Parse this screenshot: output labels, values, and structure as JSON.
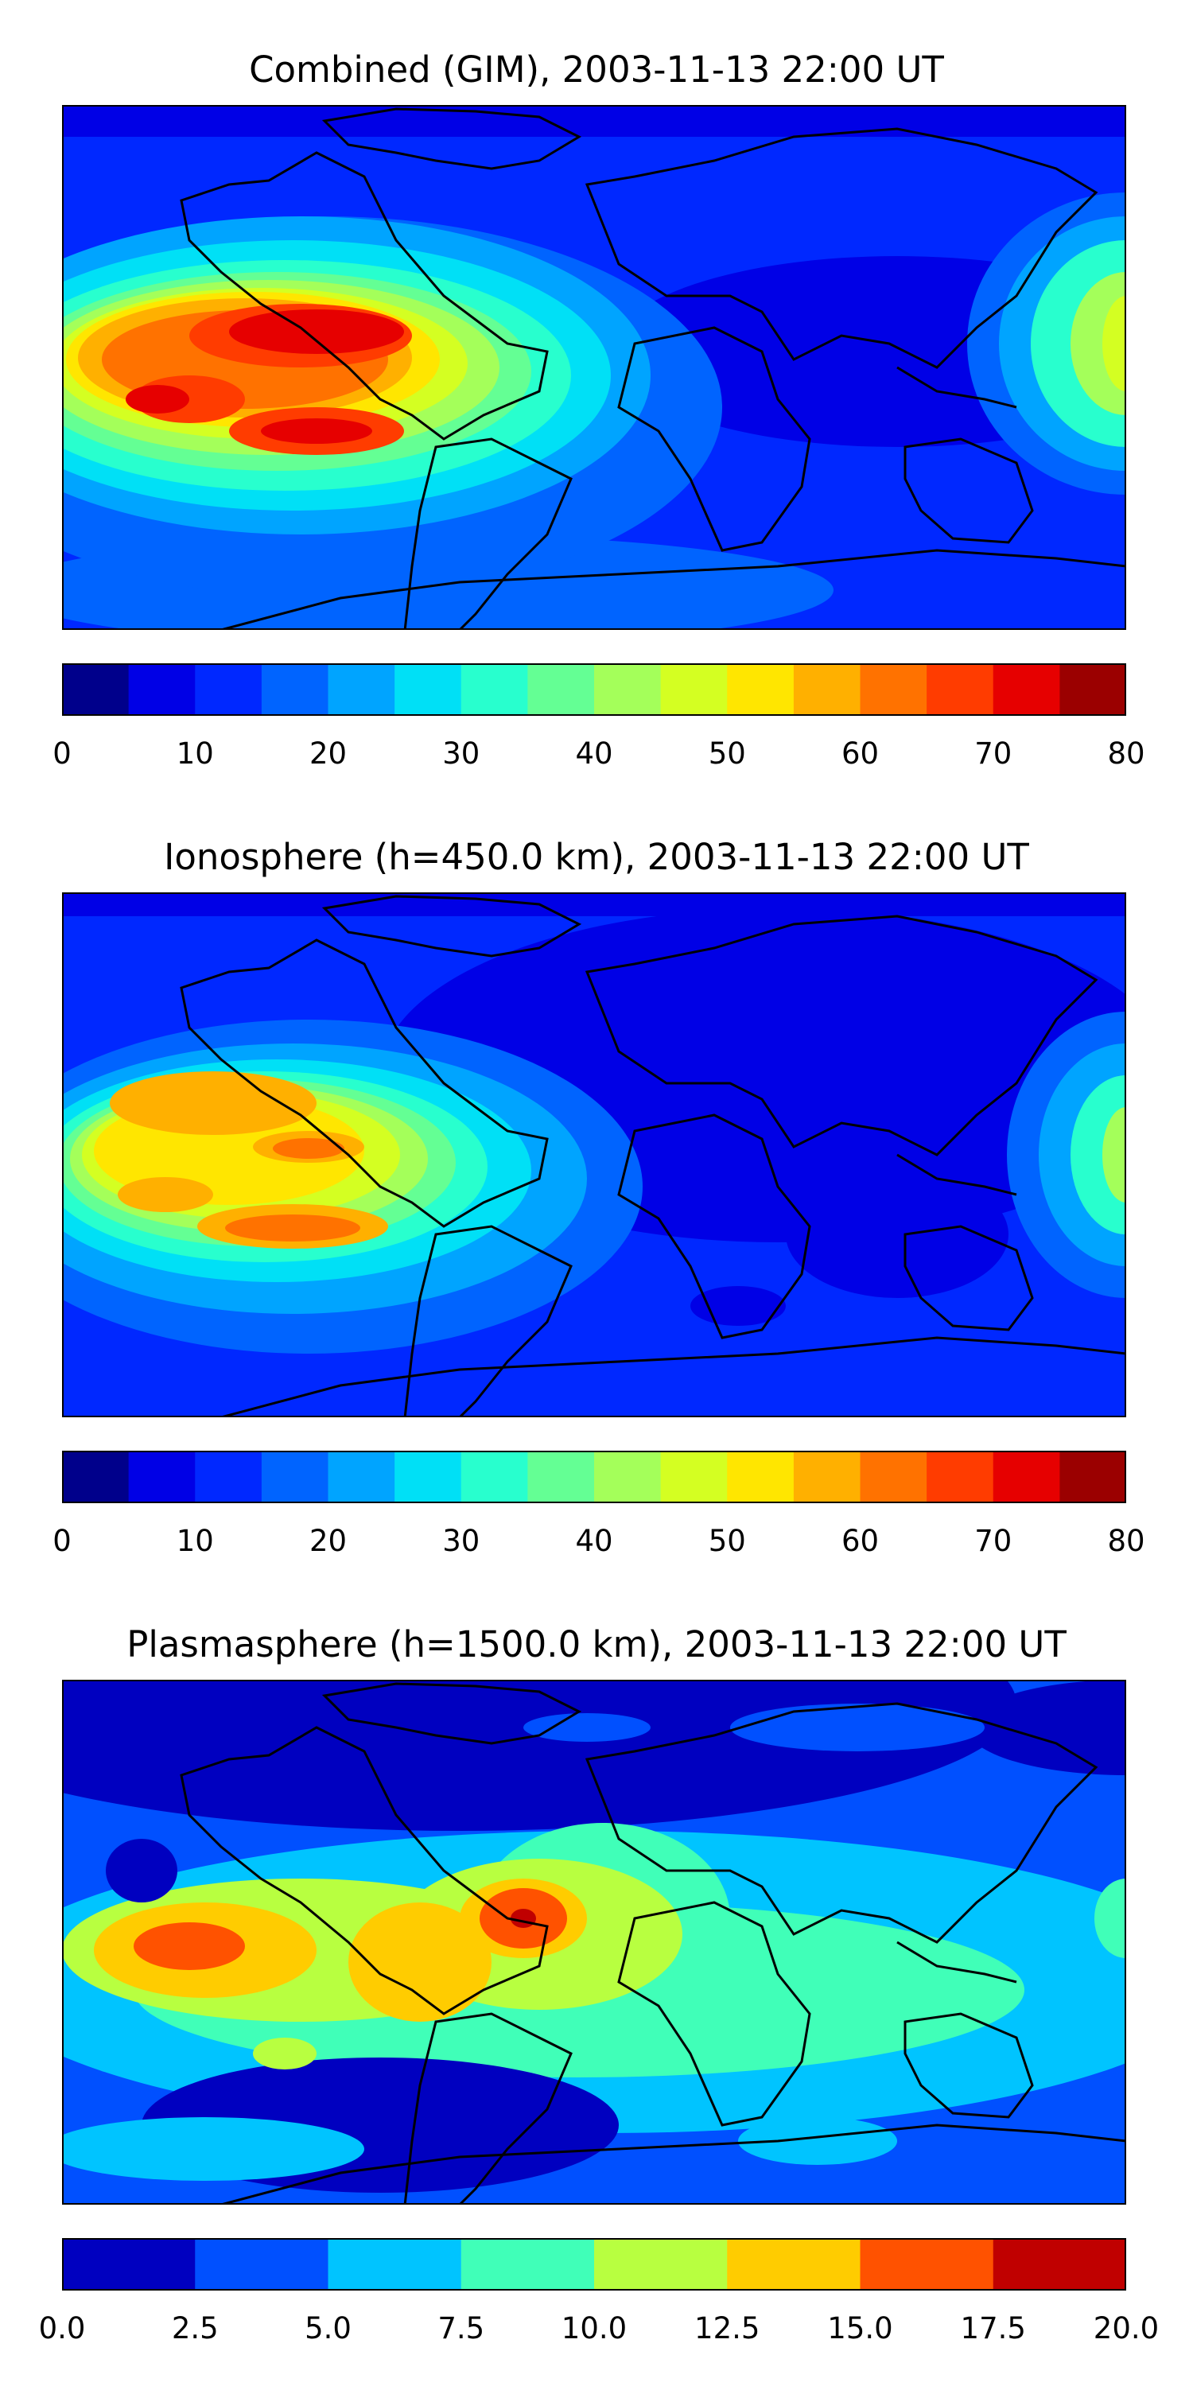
{
  "colors": {
    "jet16": [
      "#00008b",
      "#0000e6",
      "#0028ff",
      "#0064ff",
      "#00a4ff",
      "#00e0f6",
      "#28ffce",
      "#64ff94",
      "#a4ff5a",
      "#d4ff22",
      "#ffe600",
      "#ffb000",
      "#ff7200",
      "#ff3c00",
      "#e60000",
      "#9b0000"
    ],
    "jet8": [
      "#0000c0",
      "#0050ff",
      "#00c4ff",
      "#40ffb8",
      "#b8ff40",
      "#ffcc00",
      "#ff5200",
      "#c00000"
    ],
    "land_outline": "#000000"
  },
  "panels": [
    {
      "id": "combined",
      "title": "Combined (GIM), 2003-11-13 22:00 UT",
      "scale_ticks": [
        "0",
        "10",
        "20",
        "30",
        "40",
        "50",
        "60",
        "70",
        "80"
      ],
      "scale_levels": 16
    },
    {
      "id": "ionosphere",
      "title": "Ionosphere  (h=450.0 km), 2003-11-13 22:00 UT",
      "scale_ticks": [
        "0",
        "10",
        "20",
        "30",
        "40",
        "50",
        "60",
        "70",
        "80"
      ],
      "scale_levels": 16
    },
    {
      "id": "plasmasphere",
      "title": "Plasmasphere (h=1500.0 km), 2003-11-13 22:00 UT",
      "scale_ticks": [
        "0.0",
        "2.5",
        "5.0",
        "7.5",
        "10.0",
        "12.5",
        "15.0",
        "17.5",
        "20.0"
      ],
      "scale_levels": 8
    }
  ]
}
